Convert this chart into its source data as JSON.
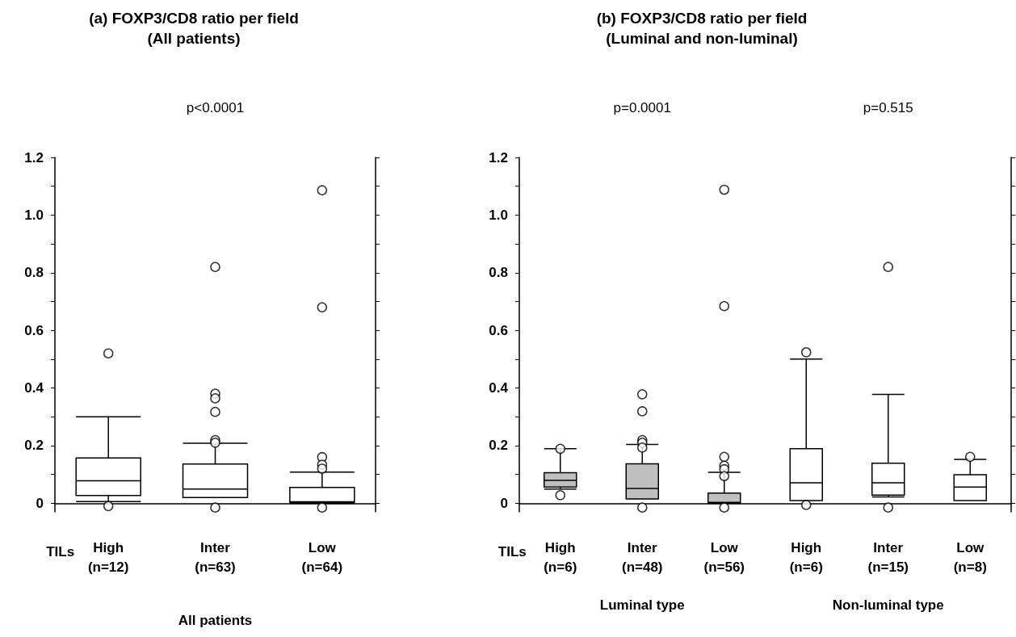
{
  "chart_data": [
    {
      "type": "box",
      "title": "(a) FOXP3/CD8 ratio per field",
      "subtitle": "(All patients)",
      "xlabel": "All patients",
      "categories": [
        "High\n(n=12)",
        "Inter\n(n=63)",
        "Low\n(n=64)"
      ],
      "boxes": [
        {
          "low": 0.006,
          "q1": 0.027,
          "median": 0.078,
          "q3": 0.157,
          "high": 0.3,
          "outliers": [
            0.52,
            -0.01
          ]
        },
        {
          "low": 0.02,
          "q1": 0.02,
          "median": 0.049,
          "q3": 0.136,
          "high": 0.208,
          "outliers": [
            0.82,
            0.38,
            0.364,
            0.317,
            0.219,
            0.21,
            -0.015
          ]
        },
        {
          "low": 0,
          "q1": 0.003,
          "median": 0.005,
          "q3": 0.055,
          "high": 0.108,
          "outliers": [
            1.086,
            0.68,
            0.16,
            0.134,
            0.12,
            -0.015
          ]
        }
      ],
      "colors": [
        "#ffffff",
        "#ffffff",
        "#ffffff"
      ],
      "ylim": [
        -0.03,
        1.2
      ],
      "yticks": [
        0,
        {
          "value": 0.1,
          "label": null
        },
        0.2,
        {
          "value": 0.3,
          "label": null
        },
        0.4,
        {
          "value": 0.5,
          "label": null
        },
        0.6,
        {
          "value": 0.7,
          "label": null
        },
        0.8,
        {
          "value": 0.9,
          "label": null
        },
        {
          "value": 1,
          "label": "1.0"
        },
        {
          "value": 1.1,
          "label": null
        },
        1.2
      ],
      "annotations": [
        "p<0.0001",
        "TILs"
      ]
    },
    {
      "type": "box",
      "title": "(b) FOXP3/CD8 ratio per field",
      "subtitle": "(Luminal and non-luminal)",
      "categories": [
        "High\n(n=6)",
        "Inter\n(n=48)",
        "Low\n(n=56)",
        "High\n(n=6)",
        "Inter\n(n=15)",
        "Low\n(n=8)"
      ],
      "boxes": [
        {
          "low": 0.049,
          "q1": 0.056,
          "median": 0.079,
          "q3": 0.106,
          "high": 0.189,
          "outliers": [
            0.189,
            0.028
          ]
        },
        {
          "low": 0.015,
          "q1": 0.015,
          "median": 0.051,
          "q3": 0.137,
          "high": 0.204,
          "outliers": [
            0.378,
            0.319,
            0.219,
            0.21,
            0.193,
            -0.015
          ]
        },
        {
          "low": 0,
          "q1": 0,
          "median": 0.003,
          "q3": 0.035,
          "high": 0.107,
          "outliers": [
            1.088,
            0.684,
            0.161,
            0.13,
            0.118,
            0.094,
            -0.015
          ]
        },
        {
          "low": 0.009,
          "q1": 0.009,
          "median": 0.071,
          "q3": 0.189,
          "high": 0.5,
          "outliers": [
            0.524,
            -0.006
          ]
        },
        {
          "low": 0.022,
          "q1": 0.028,
          "median": 0.071,
          "q3": 0.139,
          "high": 0.378,
          "outliers": [
            0.82,
            -0.015
          ]
        },
        {
          "low": 0.009,
          "q1": 0.009,
          "median": 0.056,
          "q3": 0.099,
          "high": 0.152,
          "outliers": [
            0.161
          ]
        }
      ],
      "colors": [
        "#bfbfbf",
        "#bfbfbf",
        "#bfbfbf",
        "#ffffff",
        "#ffffff",
        "#ffffff"
      ],
      "ylim": [
        -0.03,
        1.2
      ],
      "yticks": [
        0,
        {
          "value": 0.1,
          "label": null
        },
        0.2,
        {
          "value": 0.3,
          "label": null
        },
        0.4,
        {
          "value": 0.5,
          "label": null
        },
        0.6,
        {
          "value": 0.7,
          "label": null
        },
        0.8,
        {
          "value": 0.9,
          "label": null
        },
        {
          "value": 1,
          "label": "1.0"
        },
        {
          "value": 1.1,
          "label": null
        },
        1.2
      ],
      "annotations": [
        "p=0.0001",
        "p=0.515",
        "TILs",
        "Luminal type",
        "Non-luminal type"
      ]
    }
  ]
}
